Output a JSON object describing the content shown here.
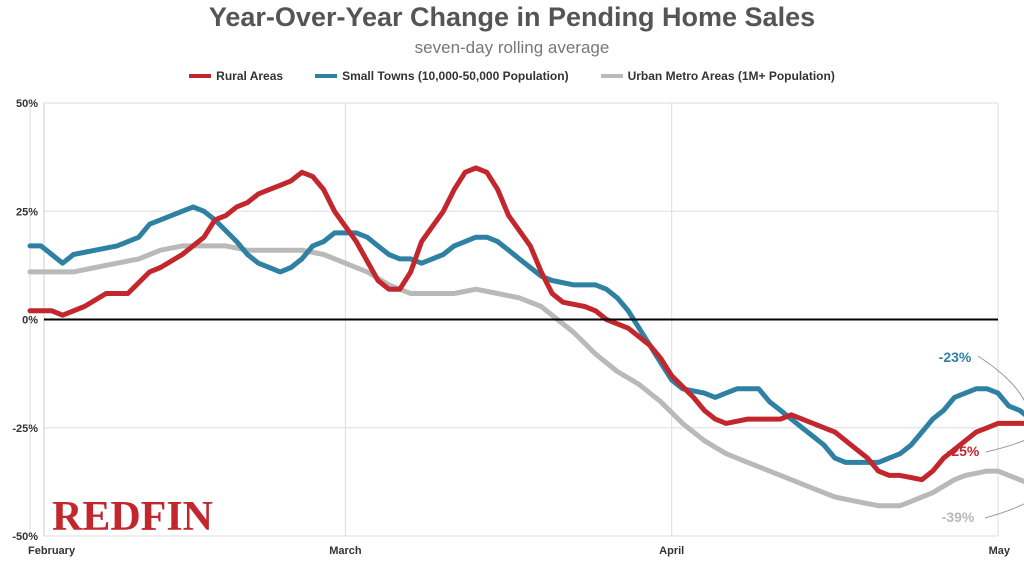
{
  "colors": {
    "rural": "#c3272e",
    "small_towns": "#2f81a4",
    "urban": "#b9b9b9",
    "zero_line": "#000000",
    "grid": "#dddddd",
    "logo": "#c3272e"
  },
  "logo_text": "REDFIN",
  "chart_data": {
    "type": "line",
    "title": "Year-Over-Year Change in Pending Home Sales",
    "subtitle": "seven-day rolling average",
    "xlabel": "",
    "ylabel": "",
    "ylim": [
      -50,
      50
    ],
    "y_ticks": [
      {
        "v": 50,
        "label": "50%"
      },
      {
        "v": 25,
        "label": "25%"
      },
      {
        "v": 0,
        "label": "0%"
      },
      {
        "v": -25,
        "label": "-25%"
      },
      {
        "v": -50,
        "label": "-50%"
      }
    ],
    "xlim": [
      0,
      89
    ],
    "x_ticks": [
      {
        "v": 0,
        "label": "February"
      },
      {
        "v": 29,
        "label": "March"
      },
      {
        "v": 59,
        "label": "April"
      },
      {
        "v": 89,
        "label": "May"
      }
    ],
    "legend_position": "top",
    "grid": true,
    "series": [
      {
        "name": "Rural Areas",
        "color_key": "rural",
        "end_label": "-25%",
        "points": [
          [
            0,
            2
          ],
          [
            2,
            2
          ],
          [
            3,
            1
          ],
          [
            5,
            3
          ],
          [
            7,
            6
          ],
          [
            9,
            6
          ],
          [
            11,
            11
          ],
          [
            12,
            12
          ],
          [
            14,
            15
          ],
          [
            16,
            19
          ],
          [
            17,
            23
          ],
          [
            18,
            24
          ],
          [
            19,
            26
          ],
          [
            20,
            27
          ],
          [
            21,
            29
          ],
          [
            22,
            30
          ],
          [
            23,
            31
          ],
          [
            24,
            32
          ],
          [
            25,
            34
          ],
          [
            26,
            33
          ],
          [
            27,
            30
          ],
          [
            28,
            25
          ],
          [
            30,
            18
          ],
          [
            32,
            9
          ],
          [
            33,
            7
          ],
          [
            34,
            7
          ],
          [
            35,
            11
          ],
          [
            36,
            18
          ],
          [
            38,
            25
          ],
          [
            39,
            30
          ],
          [
            40,
            34
          ],
          [
            41,
            35
          ],
          [
            42,
            34
          ],
          [
            43,
            30
          ],
          [
            44,
            24
          ],
          [
            46,
            17
          ],
          [
            47,
            11
          ],
          [
            48,
            6
          ],
          [
            49,
            4
          ],
          [
            51,
            3
          ],
          [
            52,
            2
          ],
          [
            53,
            0
          ],
          [
            55,
            -2
          ],
          [
            56,
            -4
          ],
          [
            57,
            -6
          ],
          [
            58,
            -9
          ],
          [
            59,
            -13
          ],
          [
            61,
            -18
          ],
          [
            62,
            -21
          ],
          [
            63,
            -23
          ],
          [
            64,
            -24
          ],
          [
            66,
            -23
          ],
          [
            68,
            -23
          ],
          [
            69,
            -23
          ],
          [
            70,
            -22
          ],
          [
            72,
            -24
          ],
          [
            74,
            -26
          ],
          [
            75,
            -28
          ],
          [
            76,
            -30
          ],
          [
            77,
            -32
          ],
          [
            78,
            -35
          ],
          [
            79,
            -36
          ],
          [
            80,
            -36
          ],
          [
            82,
            -37
          ],
          [
            83,
            -35
          ],
          [
            84,
            -32
          ],
          [
            85,
            -30
          ],
          [
            86,
            -28
          ],
          [
            87,
            -26
          ],
          [
            88,
            -25
          ],
          [
            89,
            -24
          ],
          [
            90,
            -24
          ],
          [
            91,
            -24
          ],
          [
            92,
            -24
          ],
          [
            93,
            -25
          ]
        ]
      },
      {
        "name": "Small Towns (10,000-50,000 Population)",
        "color_key": "small_towns",
        "end_label": "-23%",
        "points": [
          [
            0,
            17
          ],
          [
            1,
            17
          ],
          [
            2,
            15
          ],
          [
            3,
            13
          ],
          [
            4,
            15
          ],
          [
            6,
            16
          ],
          [
            8,
            17
          ],
          [
            10,
            19
          ],
          [
            11,
            22
          ],
          [
            13,
            24
          ],
          [
            15,
            26
          ],
          [
            16,
            25
          ],
          [
            17,
            23
          ],
          [
            19,
            18
          ],
          [
            20,
            15
          ],
          [
            21,
            13
          ],
          [
            22,
            12
          ],
          [
            23,
            11
          ],
          [
            24,
            12
          ],
          [
            25,
            14
          ],
          [
            26,
            17
          ],
          [
            27,
            18
          ],
          [
            28,
            20
          ],
          [
            29,
            20
          ],
          [
            30,
            20
          ],
          [
            31,
            19
          ],
          [
            32,
            17
          ],
          [
            33,
            15
          ],
          [
            34,
            14
          ],
          [
            35,
            14
          ],
          [
            36,
            13
          ],
          [
            38,
            15
          ],
          [
            39,
            17
          ],
          [
            40,
            18
          ],
          [
            41,
            19
          ],
          [
            42,
            19
          ],
          [
            43,
            18
          ],
          [
            44,
            16
          ],
          [
            45,
            14
          ],
          [
            46,
            12
          ],
          [
            47,
            10
          ],
          [
            48,
            9
          ],
          [
            50,
            8
          ],
          [
            52,
            8
          ],
          [
            53,
            7
          ],
          [
            54,
            5
          ],
          [
            55,
            2
          ],
          [
            56,
            -2
          ],
          [
            57,
            -6
          ],
          [
            58,
            -10
          ],
          [
            59,
            -14
          ],
          [
            60,
            -16
          ],
          [
            62,
            -17
          ],
          [
            63,
            -18
          ],
          [
            64,
            -17
          ],
          [
            65,
            -16
          ],
          [
            66,
            -16
          ],
          [
            67,
            -16
          ],
          [
            68,
            -19
          ],
          [
            69,
            -21
          ],
          [
            70,
            -23
          ],
          [
            71,
            -25
          ],
          [
            72,
            -27
          ],
          [
            73,
            -29
          ],
          [
            74,
            -32
          ],
          [
            75,
            -33
          ],
          [
            76,
            -33
          ],
          [
            77,
            -33
          ],
          [
            78,
            -33
          ],
          [
            79,
            -32
          ],
          [
            80,
            -31
          ],
          [
            81,
            -29
          ],
          [
            82,
            -26
          ],
          [
            83,
            -23
          ],
          [
            84,
            -21
          ],
          [
            85,
            -18
          ],
          [
            86,
            -17
          ],
          [
            87,
            -16
          ],
          [
            88,
            -16
          ],
          [
            89,
            -17
          ],
          [
            90,
            -20
          ],
          [
            91,
            -21
          ],
          [
            92,
            -23
          ]
        ]
      },
      {
        "name": "Urban Metro Areas (1M+ Population)",
        "color_key": "urban",
        "end_label": "-39%",
        "points": [
          [
            0,
            11
          ],
          [
            2,
            11
          ],
          [
            4,
            11
          ],
          [
            6,
            12
          ],
          [
            8,
            13
          ],
          [
            10,
            14
          ],
          [
            12,
            16
          ],
          [
            14,
            17
          ],
          [
            16,
            17
          ],
          [
            18,
            17
          ],
          [
            20,
            16
          ],
          [
            22,
            16
          ],
          [
            24,
            16
          ],
          [
            25,
            16
          ],
          [
            27,
            15
          ],
          [
            29,
            13
          ],
          [
            31,
            11
          ],
          [
            33,
            8
          ],
          [
            35,
            6
          ],
          [
            37,
            6
          ],
          [
            39,
            6
          ],
          [
            41,
            7
          ],
          [
            43,
            6
          ],
          [
            45,
            5
          ],
          [
            47,
            3
          ],
          [
            48,
            1
          ],
          [
            50,
            -3
          ],
          [
            52,
            -8
          ],
          [
            54,
            -12
          ],
          [
            56,
            -15
          ],
          [
            58,
            -19
          ],
          [
            60,
            -24
          ],
          [
            62,
            -28
          ],
          [
            64,
            -31
          ],
          [
            66,
            -33
          ],
          [
            68,
            -35
          ],
          [
            70,
            -37
          ],
          [
            72,
            -39
          ],
          [
            74,
            -41
          ],
          [
            76,
            -42
          ],
          [
            78,
            -43
          ],
          [
            80,
            -43
          ],
          [
            81,
            -42
          ],
          [
            83,
            -40
          ],
          [
            85,
            -37
          ],
          [
            86,
            -36
          ],
          [
            88,
            -35
          ],
          [
            89,
            -35
          ],
          [
            90,
            -36
          ],
          [
            92,
            -38
          ],
          [
            93,
            -39
          ]
        ]
      }
    ]
  }
}
